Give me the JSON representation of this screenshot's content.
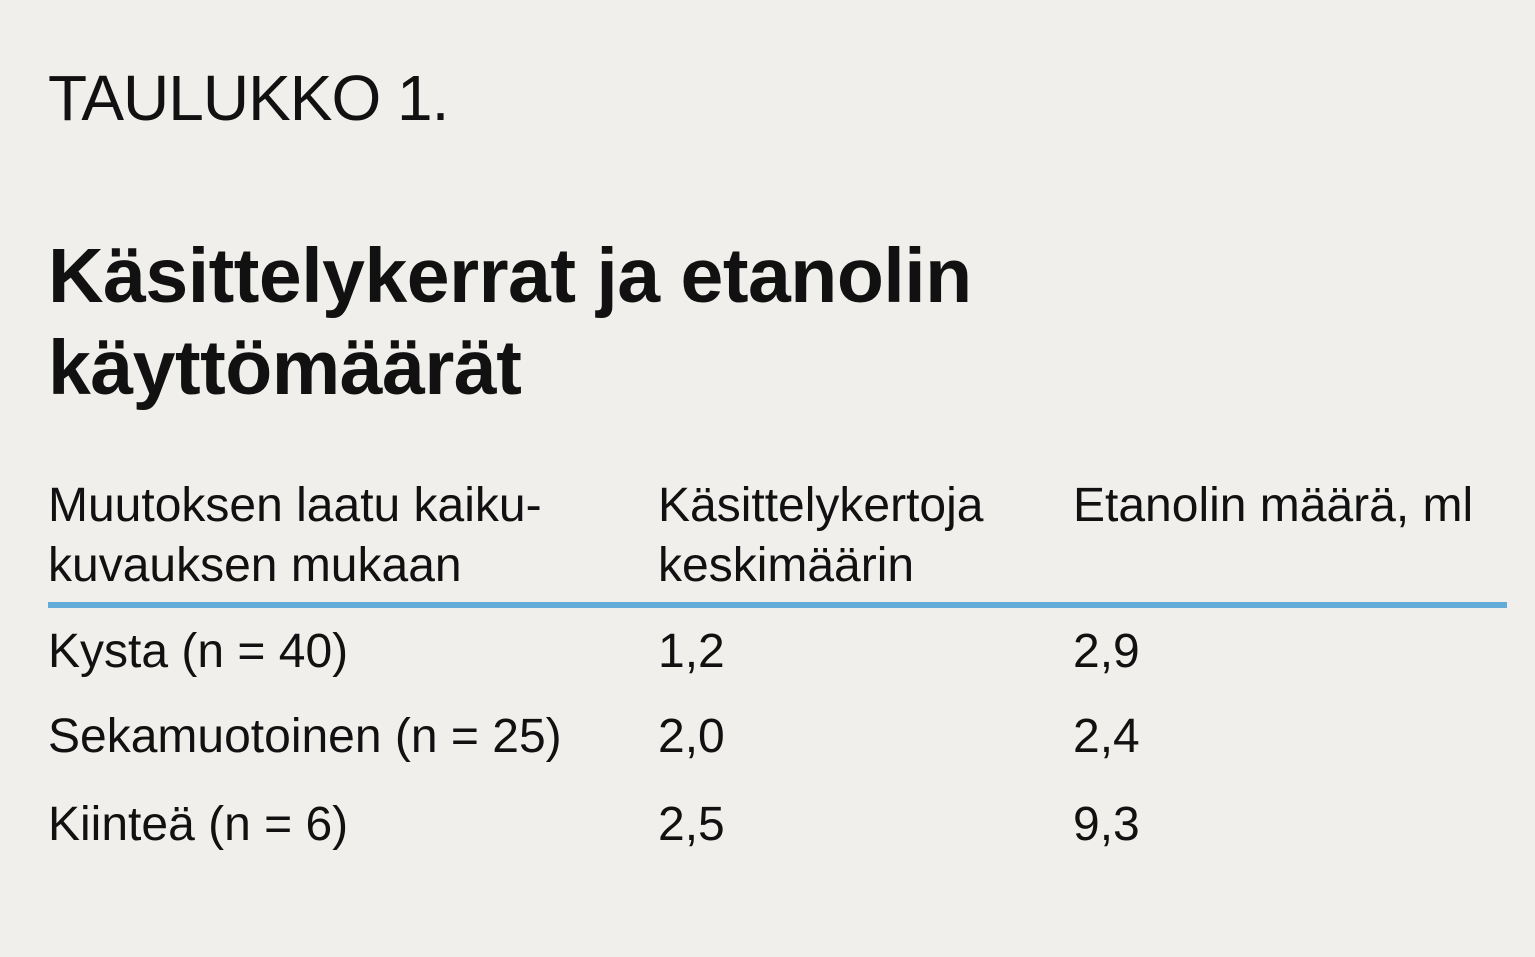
{
  "kicker": "TAULUKKO 1.",
  "title": {
    "line1": "Käsittelykerrat ja etanolin",
    "line2": "käyttömäärät"
  },
  "table": {
    "headers": [
      {
        "line1": "Muutoksen laatu kaiku-",
        "line2": "kuvauksen mukaan"
      },
      {
        "line1": "Käsittelykertoja",
        "line2": "keskimäärin"
      },
      {
        "line1": "Etanolin määrä, ml",
        "line2": ""
      }
    ],
    "rows": [
      [
        "Kysta (n = 40)",
        "1,2",
        "2,9"
      ],
      [
        "Sekamuotoinen (n = 25)",
        "2,0",
        "2,4"
      ],
      [
        "Kiinteä (n = 6)",
        "2,5",
        "9,3"
      ]
    ]
  },
  "colors": {
    "background": "#f1efec",
    "text": "#111111",
    "rule": "#64acd8"
  }
}
